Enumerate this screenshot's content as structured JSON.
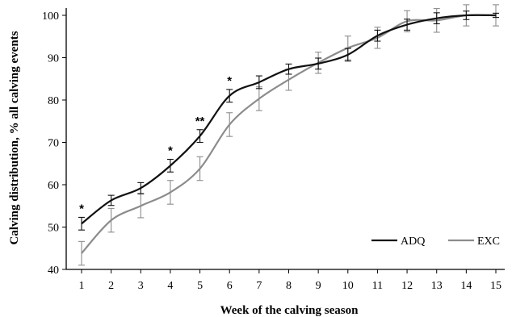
{
  "chart_data": {
    "type": "line",
    "xlabel": "Week of the calving season",
    "ylabel": "Calving distribution, % all calving events",
    "x": [
      1,
      2,
      3,
      4,
      5,
      6,
      7,
      8,
      9,
      10,
      11,
      12,
      13,
      14,
      15
    ],
    "ylim": [
      40,
      100
    ],
    "yticks": [
      40,
      50,
      60,
      70,
      80,
      90,
      100
    ],
    "grid": false,
    "legend_position": "bottom-right",
    "series": [
      {
        "name": "ADQ",
        "color": "#111111",
        "values": [
          50.8,
          56.3,
          59.2,
          64.5,
          71.5,
          81.0,
          84.2,
          87.3,
          88.6,
          90.7,
          95.2,
          97.8,
          99.3,
          100,
          100
        ],
        "error": [
          1.5,
          1.2,
          1.3,
          1.5,
          1.5,
          1.5,
          1.5,
          1.2,
          1.3,
          1.5,
          1.3,
          1.3,
          1.3,
          1.0,
          0.5
        ]
      },
      {
        "name": "EXC",
        "color": "#8c8c8c",
        "values": [
          43.8,
          51.6,
          55.0,
          58.2,
          63.8,
          74.2,
          80.3,
          84.8,
          88.8,
          92.3,
          94.7,
          98.6,
          98.8,
          100,
          100
        ],
        "error": [
          2.8,
          2.8,
          2.8,
          2.8,
          2.8,
          2.8,
          2.8,
          2.5,
          2.5,
          2.8,
          2.5,
          2.5,
          2.8,
          2.5,
          2.5
        ]
      }
    ],
    "annotations": [
      {
        "x": 1,
        "text": "*"
      },
      {
        "x": 4,
        "text": "*"
      },
      {
        "x": 5,
        "text": "**"
      },
      {
        "x": 6,
        "text": "*"
      }
    ]
  }
}
